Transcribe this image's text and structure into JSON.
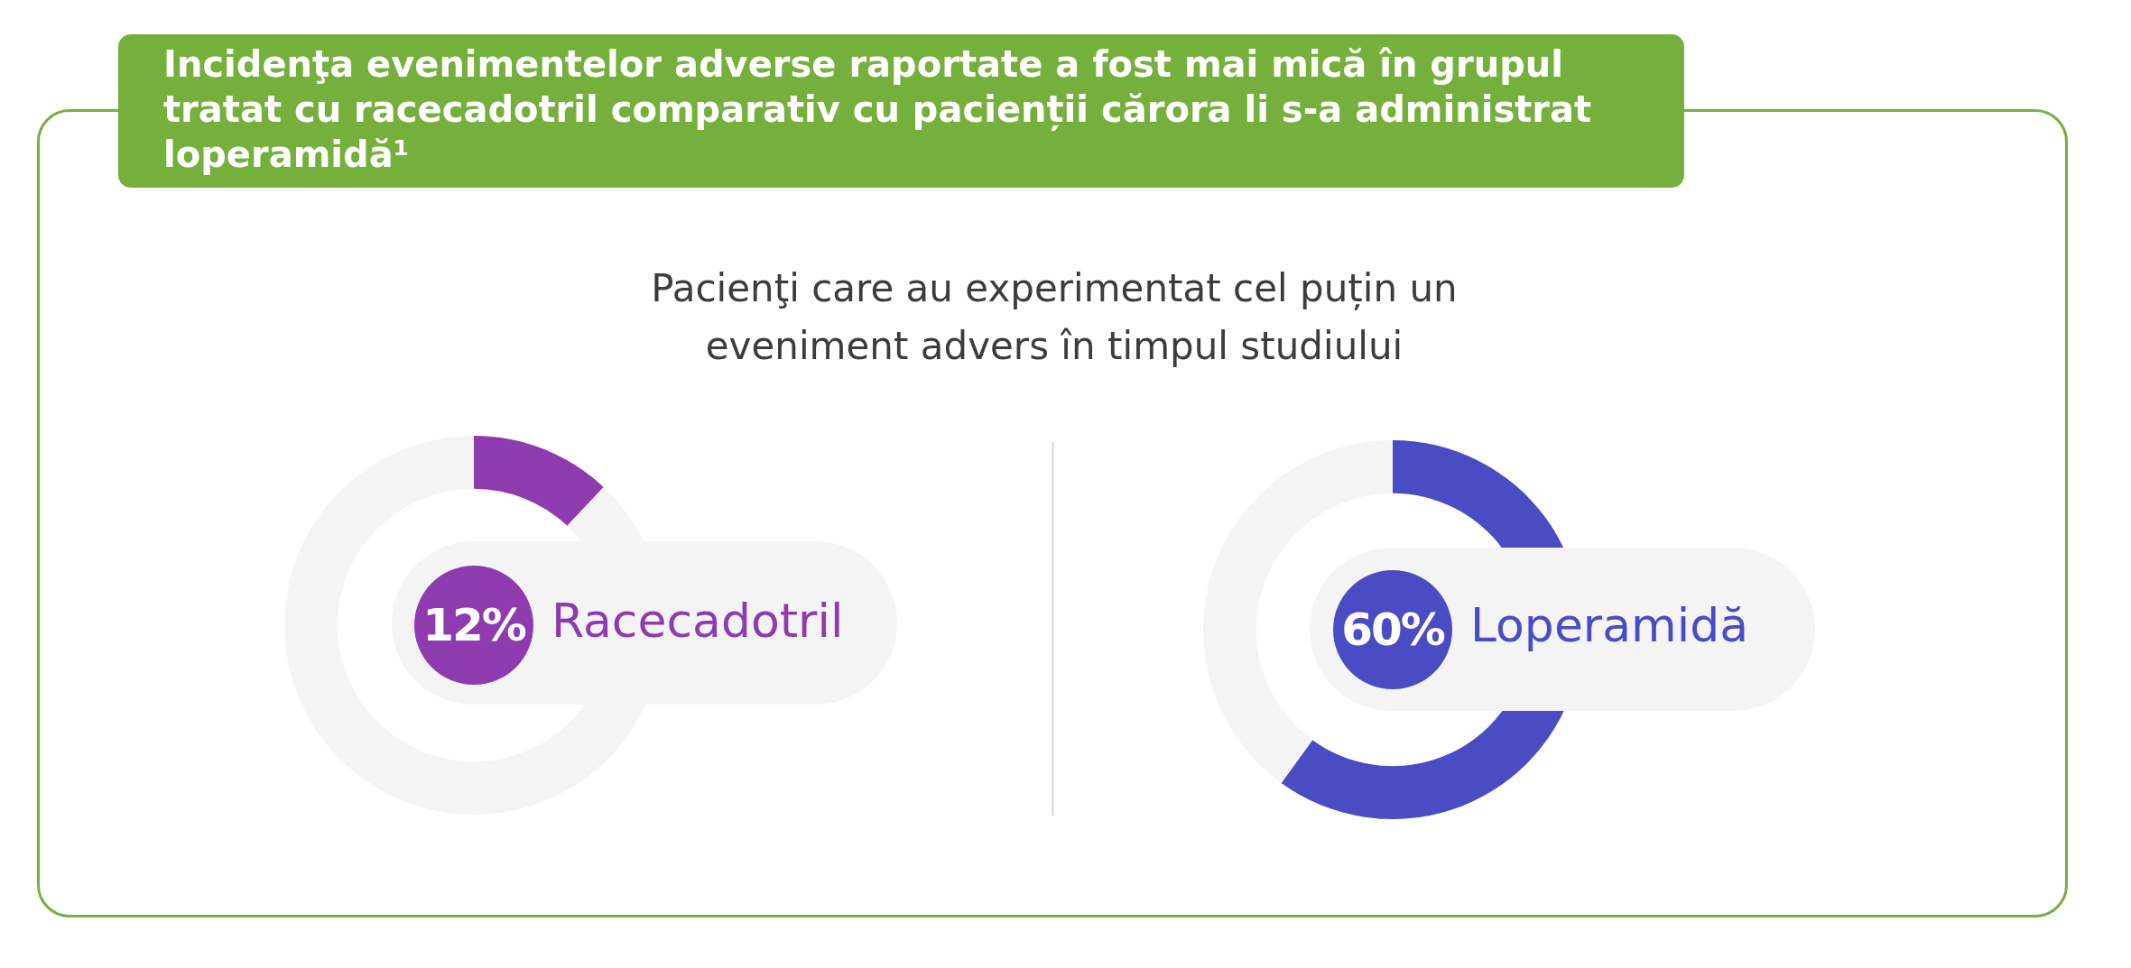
{
  "chart_data": [
    {
      "type": "donut",
      "title": "Incidenţa evenimentelor adverse raportate a fost mai mică în grupul tratat cu racecadotril comparativ cu pacienții cărora li s-a administrat loperamidă¹",
      "subtitle": "Pacienţi care au experimentat cel puțin un eveniment advers în timpul studiului",
      "categories": [
        "Racecadotril",
        null
      ],
      "values": [
        12,
        88
      ],
      "colors": [
        "#8e3bb0",
        "#f4f4f4"
      ],
      "value_labels": [
        "12%",
        null
      ]
    },
    {
      "type": "donut",
      "categories": [
        "Loperamidă",
        null
      ],
      "values": [
        60,
        40
      ],
      "colors": [
        "#4a4cc4",
        "#f4f4f4"
      ],
      "value_labels": [
        "60%",
        null
      ]
    }
  ]
}
